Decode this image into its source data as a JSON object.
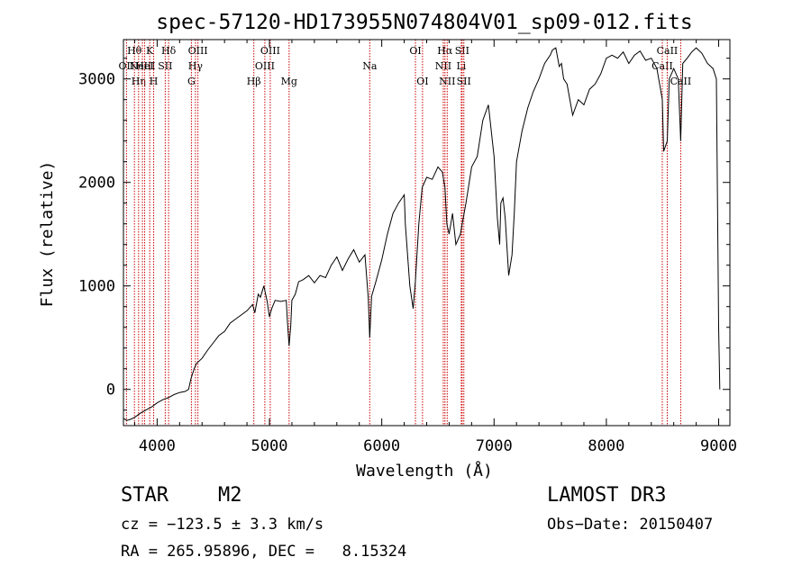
{
  "chart_data": {
    "type": "line",
    "title": "spec-57120-HD173955N074804V01_sp09-012.fits",
    "xlabel": "Wavelength (Å)",
    "ylabel": "Flux (relative)",
    "xlim": [
      3700,
      9100
    ],
    "ylim": [
      -350,
      3380
    ],
    "xticks": [
      4000,
      5000,
      6000,
      7000,
      8000,
      9000
    ],
    "yticks": [
      0,
      1000,
      2000,
      3000
    ],
    "line_color": "#000000",
    "marker_color": "#cc0000",
    "series": [
      {
        "name": "flux",
        "x": [
          3700,
          3730,
          3760,
          3800,
          3850,
          3900,
          3950,
          4000,
          4050,
          4100,
          4150,
          4200,
          4250,
          4280,
          4300,
          4330,
          4350,
          4400,
          4450,
          4500,
          4550,
          4600,
          4650,
          4700,
          4750,
          4800,
          4850,
          4870,
          4900,
          4920,
          4950,
          4980,
          5000,
          5020,
          5050,
          5100,
          5150,
          5160,
          5175,
          5190,
          5200,
          5230,
          5260,
          5300,
          5350,
          5400,
          5450,
          5500,
          5550,
          5600,
          5650,
          5700,
          5750,
          5800,
          5850,
          5880,
          5893,
          5910,
          5950,
          6000,
          6050,
          6100,
          6150,
          6200,
          6210,
          6250,
          6280,
          6300,
          6330,
          6360,
          6400,
          6450,
          6500,
          6540,
          6563,
          6580,
          6600,
          6630,
          6660,
          6700,
          6750,
          6800,
          6850,
          6900,
          6950,
          7000,
          7030,
          7050,
          7060,
          7080,
          7100,
          7130,
          7160,
          7180,
          7200,
          7250,
          7300,
          7350,
          7400,
          7450,
          7500,
          7520,
          7550,
          7580,
          7600,
          7620,
          7650,
          7700,
          7750,
          7800,
          7850,
          7900,
          7950,
          8000,
          8050,
          8100,
          8150,
          8200,
          8250,
          8300,
          8350,
          8400,
          8450,
          8498,
          8510,
          8542,
          8560,
          8600,
          8640,
          8662,
          8680,
          8720,
          8760,
          8800,
          8850,
          8900,
          8950,
          8980,
          9000,
          9010
        ],
        "y": [
          -280,
          -300,
          -290,
          -270,
          -230,
          -200,
          -170,
          -130,
          -100,
          -80,
          -50,
          -30,
          -20,
          0,
          100,
          200,
          250,
          300,
          380,
          450,
          520,
          560,
          640,
          680,
          720,
          760,
          820,
          740,
          920,
          890,
          1000,
          850,
          700,
          780,
          860,
          850,
          860,
          650,
          420,
          620,
          860,
          920,
          1040,
          1060,
          1100,
          1030,
          1100,
          1080,
          1200,
          1280,
          1150,
          1260,
          1350,
          1230,
          1300,
          880,
          500,
          900,
          1050,
          1250,
          1500,
          1700,
          1800,
          1880,
          1600,
          1000,
          780,
          1050,
          1600,
          1950,
          2050,
          2030,
          2150,
          2100,
          1950,
          1600,
          1500,
          1700,
          1400,
          1500,
          1800,
          2150,
          2250,
          2600,
          2750,
          2250,
          1650,
          1400,
          1800,
          1850,
          1650,
          1100,
          1300,
          1700,
          2200,
          2500,
          2720,
          2880,
          3000,
          3150,
          3230,
          3280,
          3300,
          3120,
          3150,
          3000,
          2950,
          2650,
          2800,
          2750,
          2900,
          2950,
          3050,
          3200,
          3230,
          3200,
          3260,
          3150,
          3230,
          3270,
          3180,
          3200,
          3100,
          2800,
          2300,
          2400,
          3000,
          3100,
          3000,
          2400,
          3150,
          3200,
          3260,
          3300,
          3250,
          3150,
          3100,
          3000,
          600,
          0
        ]
      }
    ],
    "line_markers": [
      {
        "wl": 3727,
        "label": "OII",
        "row": 1
      },
      {
        "wl": 3798,
        "label": "Hθ",
        "row": 0
      },
      {
        "wl": 3835,
        "label": "Hη",
        "row": 2
      },
      {
        "wl": 3869,
        "label": "NeIII",
        "row": 1
      },
      {
        "wl": 3889,
        "label": "HeI",
        "row": 1
      },
      {
        "wl": 3934,
        "label": "K",
        "row": 0
      },
      {
        "wl": 3969,
        "label": "H",
        "row": 2
      },
      {
        "wl": 4072,
        "label": "SII",
        "row": 1
      },
      {
        "wl": 4102,
        "label": "Hδ",
        "row": 0
      },
      {
        "wl": 4305,
        "label": "G",
        "row": 2
      },
      {
        "wl": 4341,
        "label": "Hγ",
        "row": 1
      },
      {
        "wl": 4363,
        "label": "OIII",
        "row": 0
      },
      {
        "wl": 4861,
        "label": "Hβ",
        "row": 2
      },
      {
        "wl": 4959,
        "label": "OIII",
        "row": 1
      },
      {
        "wl": 5007,
        "label": "OIII",
        "row": 0
      },
      {
        "wl": 5175,
        "label": "Mg",
        "row": 2
      },
      {
        "wl": 5893,
        "label": "Na",
        "row": 1
      },
      {
        "wl": 6300,
        "label": "OI",
        "row": 0
      },
      {
        "wl": 6363,
        "label": "OI",
        "row": 2
      },
      {
        "wl": 6548,
        "label": "NII",
        "row": 1
      },
      {
        "wl": 6563,
        "label": "Hα",
        "row": 0
      },
      {
        "wl": 6583,
        "label": "NII",
        "row": 2
      },
      {
        "wl": 6708,
        "label": "Li",
        "row": 1
      },
      {
        "wl": 6716,
        "label": "SII",
        "row": 0
      },
      {
        "wl": 6731,
        "label": "SII",
        "row": 2
      },
      {
        "wl": 8498,
        "label": "CaII",
        "row": 1
      },
      {
        "wl": 8542,
        "label": "CaII",
        "row": 0
      },
      {
        "wl": 8662,
        "label": "CaII",
        "row": 2
      }
    ]
  },
  "info": {
    "class": "STAR",
    "subclass": "M2",
    "survey": "LAMOST DR3",
    "cz": "cz = −123.5 ± 3.3 km/s",
    "obs_date": "Obs−Date: 20150407",
    "coords": "RA = 265.95896, DEC =   8.15324"
  }
}
